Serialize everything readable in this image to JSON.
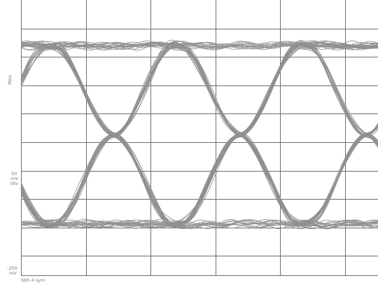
{
  "chart_data": {
    "type": "eye-diagram",
    "bit_period_divisions": 1.95,
    "bit_count": 6,
    "levels": {
      "high": 1,
      "low": -1
    },
    "grid": true,
    "grid_columns": 5,
    "grid_rows": 9,
    "trace_color": "#8f8f8f",
    "grid_color": "#6e6e6e",
    "left_labels": [
      "Mpa",
      "50",
      "mV",
      "/div",
      "-250",
      "mV"
    ],
    "bottom_label": "Sbh 4 sym"
  }
}
